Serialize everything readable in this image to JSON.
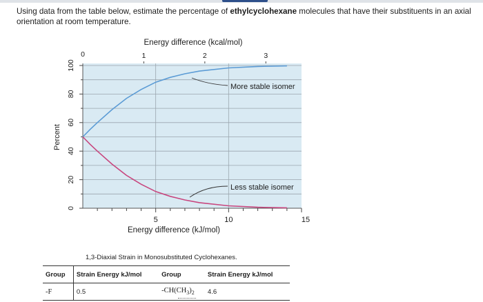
{
  "question": {
    "prefix": "Using data from the table below, estimate the percentage of",
    "emphasis": "ethylcyclohexane",
    "suffix": "molecules that have their substituents in an axial orientation at room temperature."
  },
  "chart_data": {
    "type": "line",
    "title": "",
    "top_axis": {
      "label": "Energy difference (kcal/mol)",
      "ticks": [
        "0",
        "1",
        "2",
        "3"
      ]
    },
    "bottom_axis": {
      "label": "Energy difference (kJ/mol)",
      "ticks": [
        "5",
        "10",
        "15"
      ],
      "range": [
        0,
        15
      ]
    },
    "y_axis": {
      "label": "Percent",
      "ticks": [
        "0",
        "20",
        "40",
        "60",
        "80",
        "100"
      ],
      "range": [
        0,
        100
      ]
    },
    "grid": true,
    "series": [
      {
        "name": "More stable isomer",
        "color": "#5b9bd5",
        "x": [
          0,
          0.5,
          1,
          2,
          3,
          4,
          5,
          6,
          7,
          8,
          10,
          12,
          14
        ],
        "y": [
          50,
          55.2,
          60.0,
          69.1,
          77.0,
          83.2,
          88.3,
          91.7,
          94.2,
          96.1,
          98.3,
          99.3,
          99.7
        ]
      },
      {
        "name": "Less stable isomer",
        "color": "#c8467e",
        "x": [
          0,
          0.5,
          1,
          2,
          3,
          4,
          5,
          6,
          7,
          8,
          10,
          12,
          14
        ],
        "y": [
          50,
          44.8,
          40.0,
          30.9,
          23.0,
          16.8,
          11.7,
          8.3,
          5.8,
          3.9,
          1.7,
          0.7,
          0.3
        ]
      }
    ]
  },
  "table": {
    "caption": "1,3-Diaxial Strain in Monosubstituted Cyclohexanes.",
    "headers": [
      "Group",
      "Strain Energy kJ/mol",
      "Group",
      "Strain Energy kJ/mol"
    ],
    "rows": [
      [
        "-F",
        "0.5",
        "-CH(CH3)2",
        "4.6"
      ]
    ]
  }
}
